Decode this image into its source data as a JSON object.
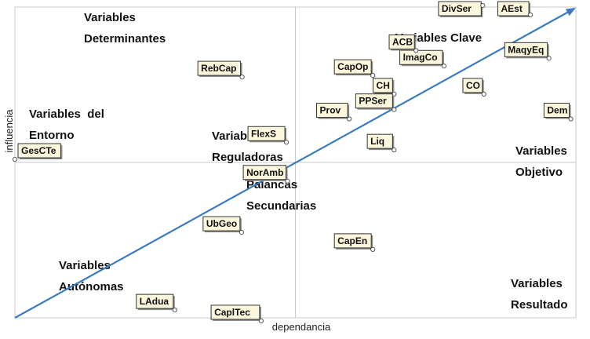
{
  "chart_data": {
    "type": "scatter",
    "title": "",
    "xlabel": "dependancia",
    "ylabel": "influencia",
    "xlim": [
      0,
      100
    ],
    "ylim": [
      0,
      100
    ],
    "grid": false,
    "quadrant_split": {
      "x": 50,
      "y": 50
    },
    "quadrant_labels": [
      {
        "id": "determinantes",
        "lines": [
          "Variables",
          "Determinantes"
        ]
      },
      {
        "id": "clave",
        "lines": [
          "Variables Clave"
        ]
      },
      {
        "id": "entorno",
        "lines": [
          "Variables  del",
          "Entorno"
        ]
      },
      {
        "id": "reguladoras",
        "lines": [
          "Variables",
          "Reguladoras"
        ]
      },
      {
        "id": "objetivo",
        "lines": [
          "Variables",
          "Objetivo"
        ]
      },
      {
        "id": "palancas",
        "lines": [
          "Palancas",
          "Secundarias"
        ]
      },
      {
        "id": "autonomas",
        "lines": [
          "Variables",
          "Autónomas"
        ]
      },
      {
        "id": "resultado",
        "lines": [
          "Variables",
          "Resultado"
        ]
      }
    ],
    "points": [
      {
        "label": "DivSer",
        "x": 83.4,
        "y": 100.5
      },
      {
        "label": "AEst",
        "x": 91.9,
        "y": 97.5
      },
      {
        "label": "ImagCo",
        "x": 76.5,
        "y": 81.0
      },
      {
        "label": "MaqyEq",
        "x": 95.2,
        "y": 83.5
      },
      {
        "label": "ACB",
        "x": 71.5,
        "y": 86.0
      },
      {
        "label": "RebCap",
        "x": 40.5,
        "y": 77.5
      },
      {
        "label": "CH",
        "x": 67.6,
        "y": 72.0
      },
      {
        "label": "CO",
        "x": 83.6,
        "y": 72.0
      },
      {
        "label": "CapOp",
        "x": 63.8,
        "y": 78.0
      },
      {
        "label": "Dem",
        "x": 99.1,
        "y": 64.0
      },
      {
        "label": "PPSer",
        "x": 67.6,
        "y": 67.0
      },
      {
        "label": "Prov",
        "x": 59.6,
        "y": 64.0
      },
      {
        "label": "FlexS",
        "x": 48.4,
        "y": 56.5
      },
      {
        "label": "Liq",
        "x": 67.6,
        "y": 54.0
      },
      {
        "label": "GesCTe",
        "x": 0.0,
        "y": 51.0
      },
      {
        "label": "NorAmb",
        "x": 48.6,
        "y": 44.0
      },
      {
        "label": "UbGeo",
        "x": 40.4,
        "y": 27.5
      },
      {
        "label": "CapEn",
        "x": 63.8,
        "y": 22.0
      },
      {
        "label": "LAdua",
        "x": 28.5,
        "y": 2.5
      },
      {
        "label": "CaplTec",
        "x": 43.9,
        "y": -1.0
      }
    ],
    "trend_arrow": {
      "from": [
        0,
        0
      ],
      "to": [
        100,
        100
      ]
    }
  }
}
